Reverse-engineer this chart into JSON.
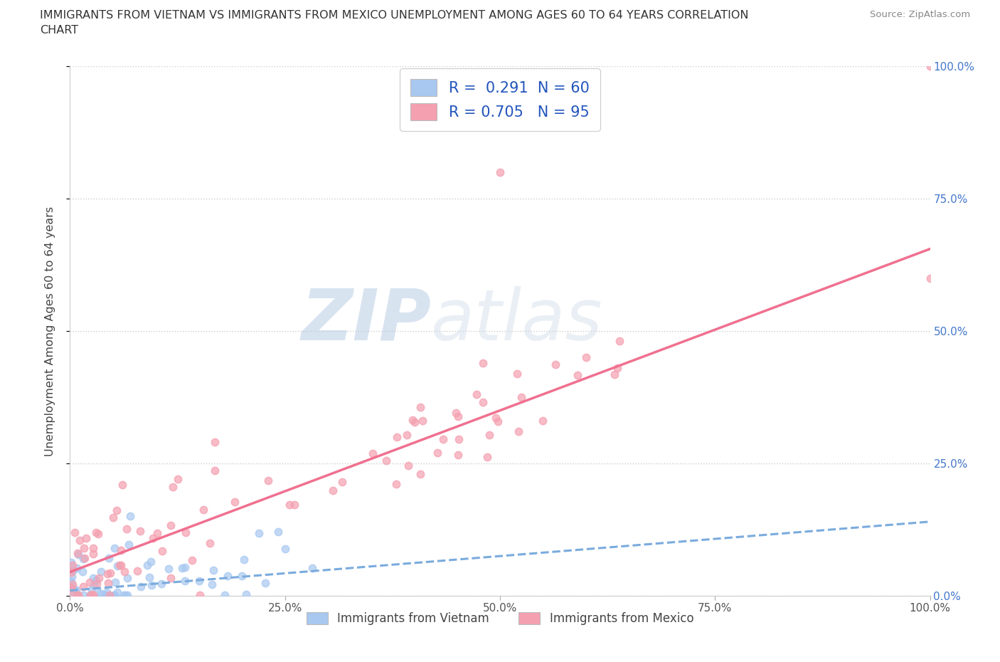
{
  "title_line1": "IMMIGRANTS FROM VIETNAM VS IMMIGRANTS FROM MEXICO UNEMPLOYMENT AMONG AGES 60 TO 64 YEARS CORRELATION",
  "title_line2": "CHART",
  "source_text": "Source: ZipAtlas.com",
  "watermark_zip": "ZIP",
  "watermark_atlas": "atlas",
  "ylabel": "Unemployment Among Ages 60 to 64 years",
  "legend_r1": "R =  0.291  N = 60",
  "legend_r2": "R = 0.705   N = 95",
  "legend_label1": "Immigrants from Vietnam",
  "legend_label2": "Immigrants from Mexico",
  "color_vietnam": "#a8c8f0",
  "color_mexico": "#f4a0b0",
  "color_line_vietnam": "#7aabdd",
  "color_line_mexico": "#f07090",
  "color_legend_text": "#2255bb",
  "color_raxis": "#4477cc",
  "background_color": "#ffffff",
  "grid_color": "#cccccc",
  "mexico_line_slope": 0.61,
  "mexico_line_intercept": 0.045,
  "vietnam_line_slope": 0.13,
  "vietnam_line_intercept": 0.01
}
